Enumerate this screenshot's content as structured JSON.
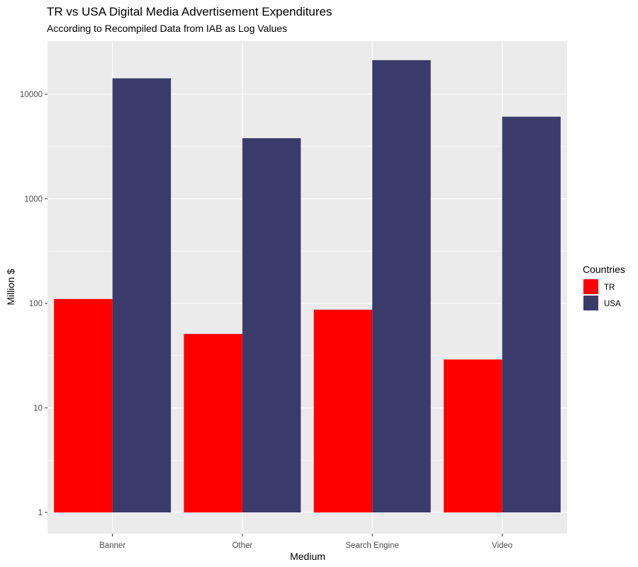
{
  "chart_data": {
    "type": "bar",
    "title": "TR vs USA Digital Media Advertisement Expenditures",
    "subtitle": "According to Recompiled Data from IAB as Log Values",
    "xlabel": "Medium",
    "ylabel": "Million $",
    "y_scale": "log10",
    "ylim": [
      1,
      22000
    ],
    "y_ticks": [
      1,
      10,
      100,
      1000,
      10000
    ],
    "y_tick_labels": [
      "1",
      "10",
      "100",
      "1000",
      "10000"
    ],
    "categories": [
      "Banner",
      "Other",
      "Search Engine",
      "Video"
    ],
    "series": [
      {
        "name": "TR",
        "color": "#ff0000",
        "values": [
          110,
          51,
          87,
          29
        ]
      },
      {
        "name": "USA",
        "color": "#3b3b6b",
        "values": [
          14200,
          3800,
          21200,
          6100
        ]
      }
    ],
    "grid": true,
    "legend": {
      "title": "Countries",
      "position": "right"
    }
  }
}
